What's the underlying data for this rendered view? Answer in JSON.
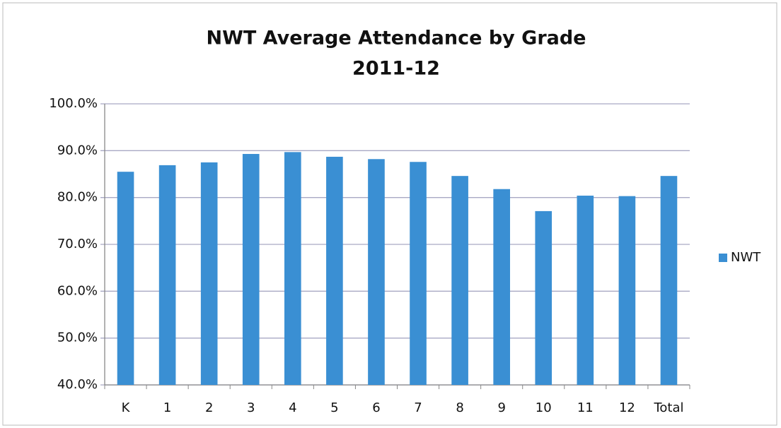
{
  "chart_data": {
    "type": "bar",
    "title": "NWT Average Attendance by Grade",
    "subtitle": "2011-12",
    "categories": [
      "K",
      "1",
      "2",
      "3",
      "4",
      "5",
      "6",
      "7",
      "8",
      "9",
      "10",
      "11",
      "12",
      "Total"
    ],
    "series": [
      {
        "name": "NWT",
        "color": "#3a8fd3",
        "values": [
          85.5,
          86.9,
          87.5,
          89.3,
          89.7,
          88.7,
          88.2,
          87.6,
          84.6,
          81.8,
          77.1,
          80.4,
          80.3,
          84.6
        ]
      }
    ],
    "ylim": [
      40,
      100
    ],
    "yticks": [
      {
        "value": 40,
        "label": "40.0%"
      },
      {
        "value": 50,
        "label": "50.0%"
      },
      {
        "value": 60,
        "label": "60.0%"
      },
      {
        "value": 70,
        "label": "70.0%"
      },
      {
        "value": 80,
        "label": "80.0%"
      },
      {
        "value": 90,
        "label": "90.0%"
      },
      {
        "value": 100,
        "label": "100.0%"
      }
    ],
    "grid": true,
    "legend": "right"
  }
}
